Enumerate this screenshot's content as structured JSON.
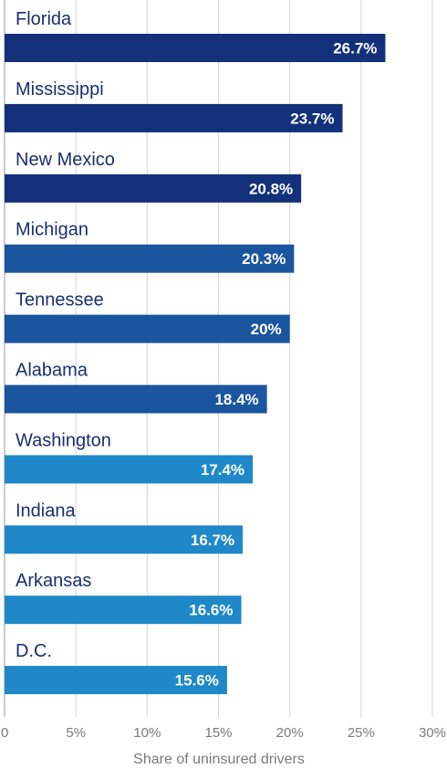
{
  "chart_data": {
    "type": "bar",
    "orientation": "horizontal",
    "categories": [
      "Florida",
      "Mississippi",
      "New Mexico",
      "Michigan",
      "Tennessee",
      "Alabama",
      "Washington",
      "Indiana",
      "Arkansas",
      "D.C."
    ],
    "values": [
      26.7,
      23.7,
      20.8,
      20.3,
      20,
      18.4,
      17.4,
      16.7,
      16.6,
      15.6
    ],
    "data_labels": [
      "26.7%",
      "23.7%",
      "20.8%",
      "20.3%",
      "20%",
      "18.4%",
      "17.4%",
      "16.7%",
      "16.6%",
      "15.6%"
    ],
    "bar_colors": [
      "#12317a",
      "#12317a",
      "#12317a",
      "#1a55a0",
      "#1a55a0",
      "#1a55a0",
      "#1e88c8",
      "#1e88c8",
      "#1e88c8",
      "#1e88c8"
    ],
    "xlabel": "Share of uninsured drivers",
    "xlim": [
      0,
      30
    ],
    "xticks": [
      0,
      5,
      10,
      15,
      20,
      25,
      30
    ],
    "xtick_labels": [
      "0",
      "5%",
      "10%",
      "15%",
      "20%",
      "25%",
      "30%"
    ],
    "grid": true
  }
}
